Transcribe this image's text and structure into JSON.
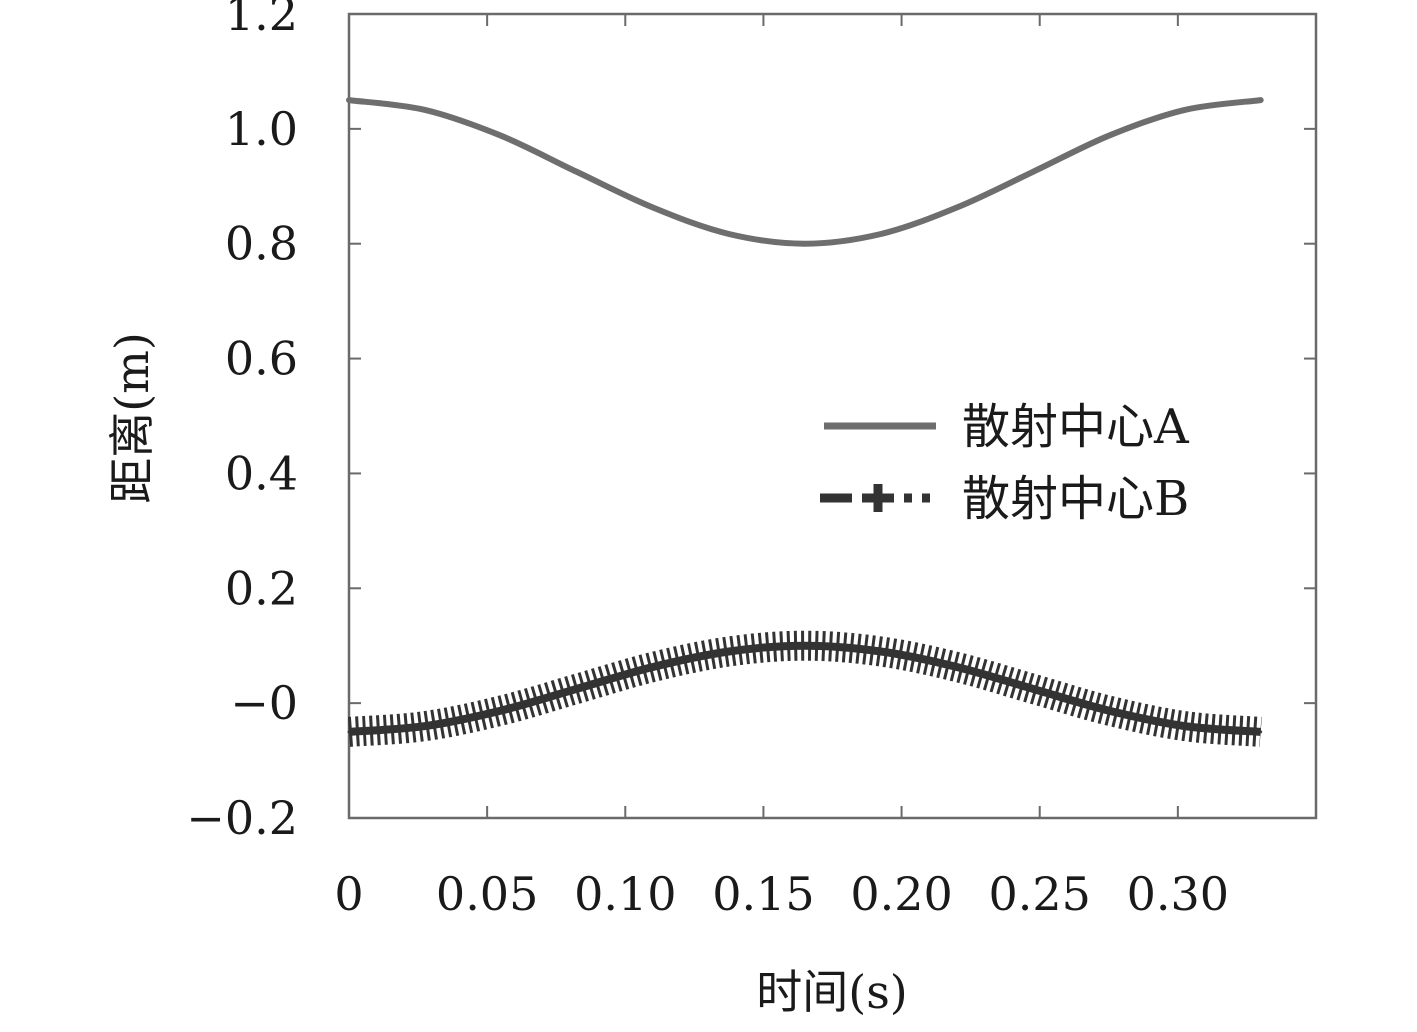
{
  "chart_data": {
    "type": "line",
    "title": "",
    "xlabel": "时间(s)",
    "ylabel": "距离(m)",
    "xlim": [
      0,
      0.35
    ],
    "ylim": [
      -0.2,
      1.2
    ],
    "x_ticks": [
      0,
      0.05,
      0.1,
      0.15,
      0.2,
      0.25,
      0.3
    ],
    "x_tick_labels": [
      "0",
      "0.05",
      "0.10",
      "0.15",
      "0.20",
      "0.25",
      "0.30"
    ],
    "y_ticks": [
      -0.2,
      0,
      0.2,
      0.4,
      0.6,
      0.8,
      1.0,
      1.2
    ],
    "y_tick_labels": [
      "−0.2",
      "−0",
      "0.2",
      "0.4",
      "0.6",
      "0.8",
      "1.0",
      "1.2"
    ],
    "grid": false,
    "legend_position": "center-right",
    "series": [
      {
        "name": "散射中心A",
        "style": "solid",
        "color": "#6e6e6e",
        "x": [
          0,
          0.0275,
          0.055,
          0.0825,
          0.11,
          0.1375,
          0.165,
          0.1925,
          0.22,
          0.2475,
          0.275,
          0.3025,
          0.33
        ],
        "y": [
          1.05,
          1.033,
          0.988,
          0.925,
          0.863,
          0.817,
          0.8,
          0.817,
          0.863,
          0.925,
          0.988,
          1.033,
          1.05
        ]
      },
      {
        "name": "散射中心B",
        "style": "dash-plus",
        "color": "#333333",
        "x": [
          0,
          0.0275,
          0.055,
          0.0825,
          0.11,
          0.1375,
          0.165,
          0.1925,
          0.22,
          0.2475,
          0.275,
          0.3025,
          0.33
        ],
        "y": [
          -0.05,
          -0.04,
          -0.013,
          0.025,
          0.063,
          0.09,
          0.1,
          0.09,
          0.063,
          0.025,
          -0.013,
          -0.04,
          -0.05
        ]
      }
    ]
  }
}
